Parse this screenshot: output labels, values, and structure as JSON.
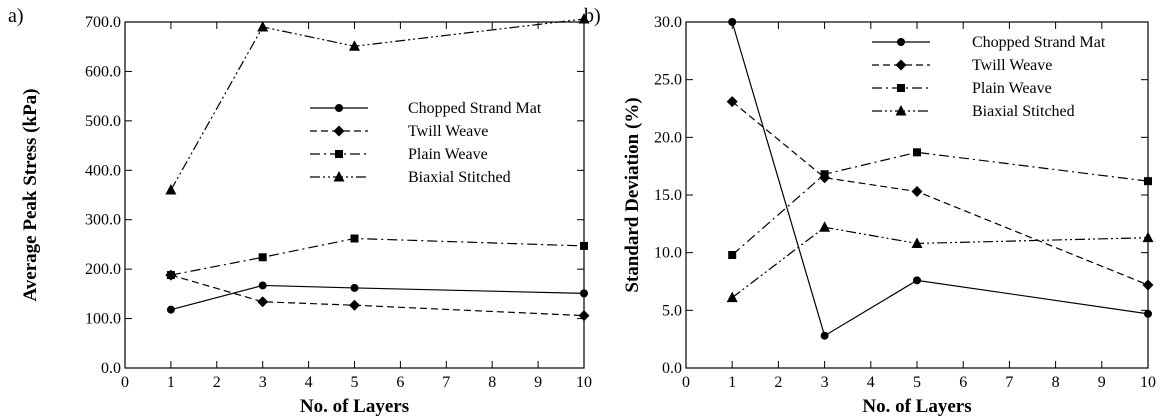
{
  "chart_data": [
    {
      "type": "line",
      "panel_label": "a)",
      "xlabel": "No. of Layers",
      "ylabel": "Average Peak Stress (kPa)",
      "xlim": [
        0,
        10
      ],
      "ylim": [
        0,
        700
      ],
      "x_ticks": [
        "0",
        "1",
        "2",
        "3",
        "4",
        "5",
        "6",
        "7",
        "8",
        "9",
        "10"
      ],
      "y_ticks": [
        "0.0",
        "100.0",
        "200.0",
        "300.0",
        "400.0",
        "500.0",
        "600.0",
        "700.0"
      ],
      "grid": false,
      "legend_position": "center-right",
      "series": [
        {
          "name": "Chopped Strand Mat",
          "x": [
            1,
            3,
            5,
            10
          ],
          "y": [
            118,
            167,
            162,
            151
          ],
          "marker": "circle",
          "dash": "solid"
        },
        {
          "name": "Twill Weave",
          "x": [
            1,
            3,
            5,
            10
          ],
          "y": [
            188,
            134,
            127,
            106
          ],
          "marker": "diamond",
          "dash": "dashed"
        },
        {
          "name": "Plain Weave",
          "x": [
            1,
            3,
            5,
            10
          ],
          "y": [
            188,
            224,
            262,
            247
          ],
          "marker": "square",
          "dash": "dashdot"
        },
        {
          "name": "Biaxial Stitched",
          "x": [
            1,
            3,
            5,
            10
          ],
          "y": [
            360,
            690,
            651,
            706
          ],
          "marker": "triangle",
          "dash": "dashdotdot"
        }
      ]
    },
    {
      "type": "line",
      "panel_label": "b)",
      "xlabel": "No. of Layers",
      "ylabel": "Standard Deviation (%)",
      "xlim": [
        0,
        10
      ],
      "ylim": [
        0,
        30
      ],
      "x_ticks": [
        "0",
        "1",
        "2",
        "3",
        "4",
        "5",
        "6",
        "7",
        "8",
        "9",
        "10"
      ],
      "y_ticks": [
        "0.0",
        "5.0",
        "10.0",
        "15.0",
        "20.0",
        "25.0",
        "30.0"
      ],
      "grid": false,
      "legend_position": "top-right",
      "series": [
        {
          "name": "Chopped Strand Mat",
          "x": [
            1,
            3,
            5,
            10
          ],
          "y": [
            30.0,
            2.8,
            7.6,
            4.7
          ],
          "marker": "circle",
          "dash": "solid"
        },
        {
          "name": "Twill Weave",
          "x": [
            1,
            3,
            5,
            10
          ],
          "y": [
            23.1,
            16.5,
            15.3,
            7.2
          ],
          "marker": "diamond",
          "dash": "dashed"
        },
        {
          "name": "Plain Weave",
          "x": [
            1,
            3,
            5,
            10
          ],
          "y": [
            9.8,
            16.8,
            18.7,
            16.2
          ],
          "marker": "square",
          "dash": "dashdot"
        },
        {
          "name": "Biaxial Stitched",
          "x": [
            1,
            3,
            5,
            10
          ],
          "y": [
            6.1,
            12.2,
            10.8,
            11.3
          ],
          "marker": "triangle",
          "dash": "dashdotdot"
        }
      ]
    }
  ]
}
